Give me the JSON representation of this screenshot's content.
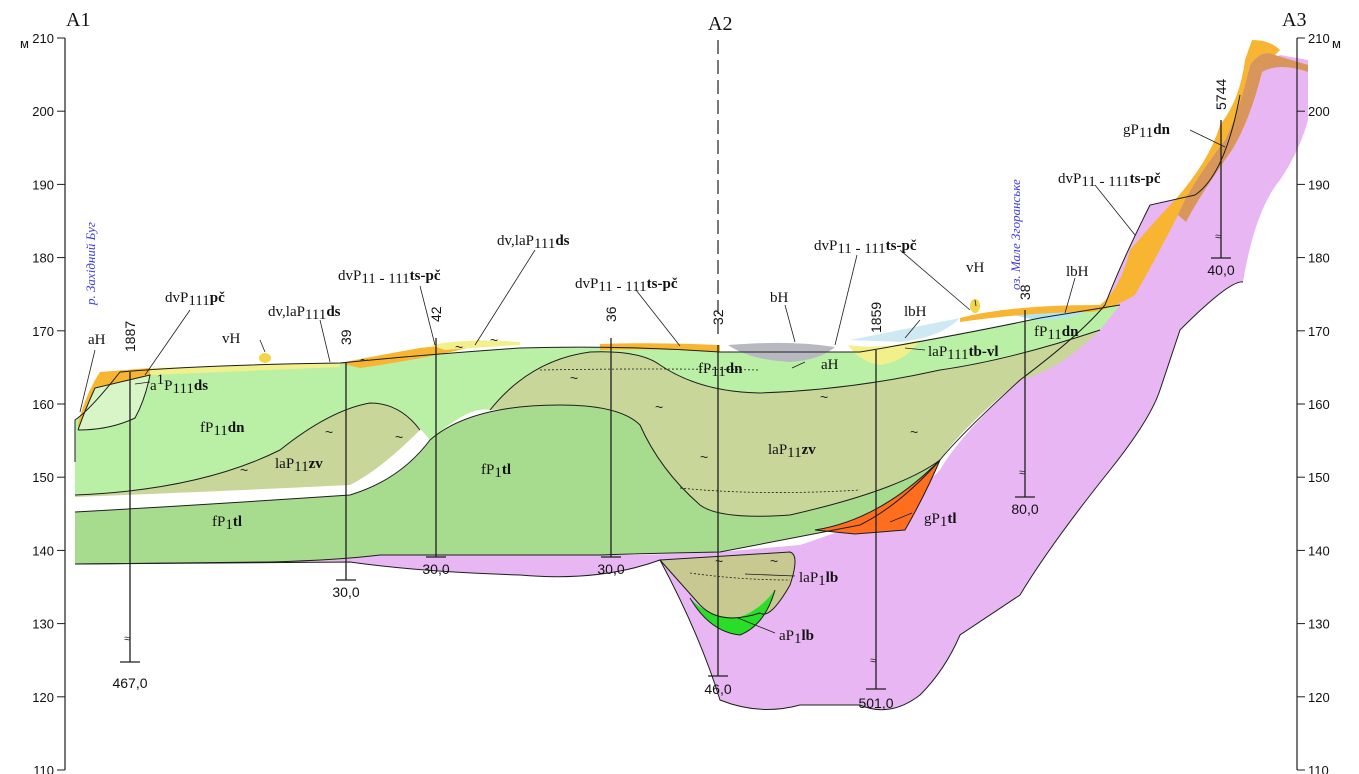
{
  "corners": [
    "A1",
    "A2",
    "A3"
  ],
  "colors": {
    "bedrock": "#e8b6f2",
    "fP1tl": "#a7dc8e",
    "laP11zv": "#c9d69a",
    "fP11dn": "#b9f0a6",
    "alluvium_a1P111ds": "#d8f5c8",
    "laP1lb": "#c7c990",
    "aP1lb": "#29dd29",
    "gP1tl": "#ff6e1e",
    "dv_slope": "#f7b531",
    "gP11dn_cover": "#d9965a",
    "dvla_cover": "#f2f08a",
    "lake_bH": "#b8b8c2",
    "lbH": "#cfe9f2",
    "lake_ice": "#aee6f2",
    "outline": "#1e1e1e"
  },
  "axis": {
    "left_unit": "м",
    "right_unit": "м",
    "ticks": [
      "210",
      "200",
      "190",
      "180",
      "170",
      "160",
      "150",
      "140",
      "130",
      "120",
      "110"
    ]
  },
  "water_labels": {
    "river": "р. Західний Буг",
    "lake": "оз. Мале Згоранське"
  },
  "wells": [
    {
      "id": "1887",
      "depth": "467,0"
    },
    {
      "id": "39",
      "depth": "30,0"
    },
    {
      "id": "42",
      "depth": "30,0"
    },
    {
      "id": "36",
      "depth": "30,0"
    },
    {
      "id": "32",
      "depth": "46,0"
    },
    {
      "id": "1859",
      "depth": "501,0"
    },
    {
      "id": "38",
      "depth": "80,0"
    },
    {
      "id": "5744",
      "depth": "40,0"
    }
  ],
  "labels": {
    "aH": "aH",
    "dvP111pc_1": "dvP",
    "dvP111pc_2": "111",
    "dvP111pc_3": "pč",
    "vH_1": "vH",
    "dvla_ds_left_1": "dv,laP",
    "dvla_ds_left_2": "111",
    "dvla_ds_left_3": "ds",
    "dvP11111ts_a_1": "dvP",
    "dvP11111ts_a_2": "11 - 111",
    "dvP11111ts_a_3": "ts-pč",
    "dvla_ds_mid_1": "dv,laP",
    "dvla_ds_mid_2": "111",
    "dvla_ds_mid_3": "ds",
    "dvP11111ts_b_1": "dvP",
    "dvP11111ts_b_2": "11 - 111",
    "dvP11111ts_b_3": "ts-pč",
    "bH": "bH",
    "dvP11111ts_c_1": "dvP",
    "dvP11111ts_c_2": "11 - 111",
    "dvP11111ts_c_3": "ts-pč",
    "vH_2": "vH",
    "lbH_1": "lbH",
    "lbH_2": "lbH",
    "gP11dn_1": "gP",
    "gP11dn_2": "11",
    "gP11dn_3": "dn",
    "dvP11111ts_d_1": "dvP",
    "dvP11111ts_d_2": "11 - 111",
    "dvP11111ts_d_3": "ts-pč",
    "a1P111ds_1": "a",
    "a1P111ds_2": "1",
    "a1P111ds_3": "P",
    "a1P111ds_4": "111",
    "a1P111ds_5": "ds",
    "fP11dn_left_1": "fP",
    "fP11dn_left_2": "11",
    "fP11dn_left_3": "dn",
    "laP11zv_left_1": "laP",
    "laP11zv_left_2": "11",
    "laP11zv_left_3": "zv",
    "fP1tl_mid_1": "fP",
    "fP1tl_mid_2": "1",
    "fP1tl_mid_3": "tl",
    "fP1tl_left_1": "fP",
    "fP1tl_left_2": "1",
    "fP1tl_left_3": "tl",
    "fP11dn_center_1": "fP",
    "fP11dn_center_2": "11",
    "fP11dn_center_3": "dn",
    "aH_2": "aH",
    "laP111tbvl_1": "laP",
    "laP111tbvl_2": "111",
    "laP111tbvl_3": "tb-vl",
    "fP11dn_right_1": "fP",
    "fP11dn_right_2": "11",
    "fP11dn_right_3": "dn",
    "laP11zv_right_1": "laP",
    "laP11zv_right_2": "11",
    "laP11zv_right_3": "zv",
    "gP1tl_1": "gP",
    "gP1tl_2": "1",
    "gP1tl_3": "tl",
    "laP1lb_1": "laP",
    "laP1lb_2": "1",
    "laP1lb_3": "lb",
    "aP1lb_1": "aP",
    "aP1lb_2": "1",
    "aP1lb_3": "lb"
  }
}
